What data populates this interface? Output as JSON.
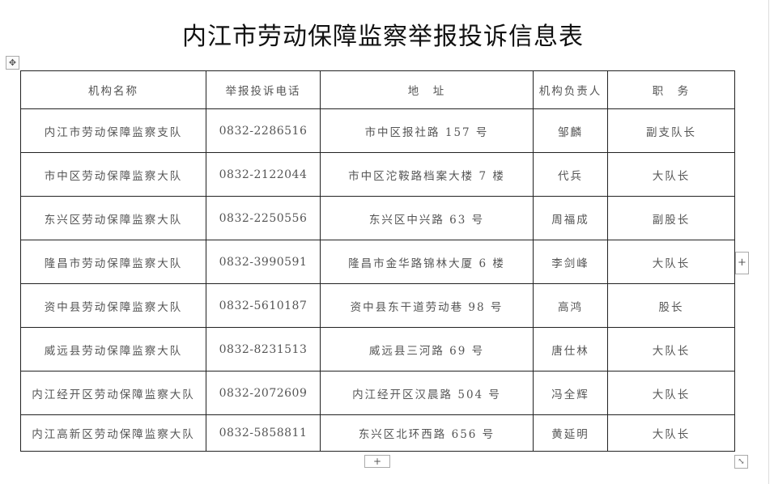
{
  "title": "内江市劳动保障监察举报投诉信息表",
  "headers": [
    "机构名称",
    "举报投诉电话",
    "地　址",
    "机构负责人",
    "职　务"
  ],
  "rows": [
    [
      "内江市劳动保障监察支队",
      "0832-2286516",
      "市中区报社路 157 号",
      "邹麟",
      "副支队长"
    ],
    [
      "市中区劳动保障监察大队",
      "0832-2122044",
      "市中区沱鞍路档案大楼 7 楼",
      "代兵",
      "大队长"
    ],
    [
      "东兴区劳动保障监察大队",
      "0832-2250556",
      "东兴区中兴路 63 号",
      "周福成",
      "副股长"
    ],
    [
      "隆昌市劳动保障监察大队",
      "0832-3990591",
      "隆昌市金华路锦林大厦 6 楼",
      "李剑峰",
      "大队长"
    ],
    [
      "资中县劳动保障监察大队",
      "0832-5610187",
      "资中县东干道劳动巷 98 号",
      "高鸿",
      "股长"
    ],
    [
      "威远县劳动保障监察大队",
      "0832-8231513",
      "威远县三河路 69 号",
      "唐仕林",
      "大队长"
    ],
    [
      "内江经开区劳动保障监察大队",
      "0832-2072609",
      "内江经开区汉晨路 504 号",
      "冯全辉",
      "大队长"
    ],
    [
      "内江高新区劳动保障监察大队",
      "0832-5858811",
      "东兴区北环西路 656 号",
      "黄延明",
      "大队长"
    ]
  ],
  "controls": {
    "add_symbol": "+",
    "move_symbol": "✥",
    "resize_symbol": "⤡"
  }
}
